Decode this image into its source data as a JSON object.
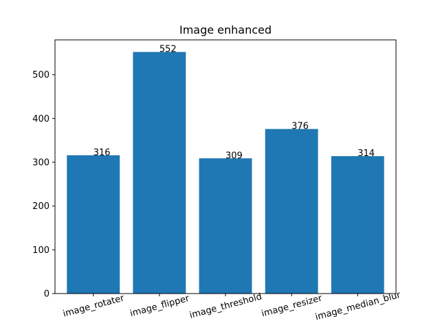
{
  "chart_data": {
    "type": "bar",
    "title": "Image enhanced",
    "xlabel": "",
    "ylabel": "",
    "categories": [
      "image_rotater",
      "image_flipper",
      "image_threshold",
      "image_resizer",
      "image_median_blur"
    ],
    "values": [
      316,
      552,
      309,
      376,
      314
    ],
    "data_labels": [
      "316",
      "552",
      "309",
      "376",
      "314"
    ],
    "y_ticks": [
      0,
      100,
      200,
      300,
      400,
      500
    ],
    "ylim": [
      0,
      579.6
    ],
    "bar_color": "#1f77b4",
    "grid": false,
    "legend": "none"
  }
}
